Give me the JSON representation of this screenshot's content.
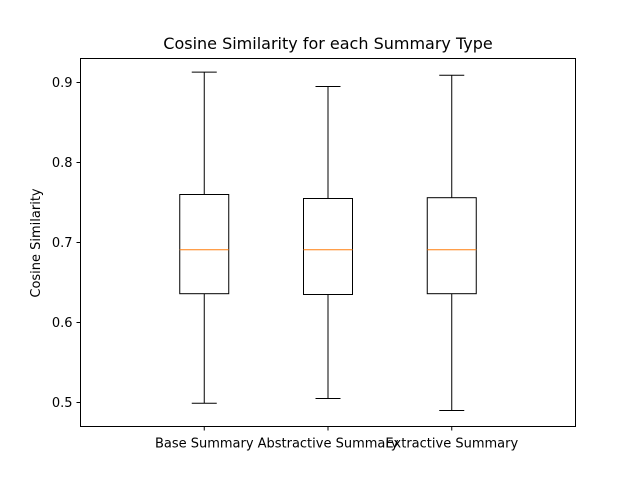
{
  "chart_data": {
    "type": "boxplot",
    "title": "Cosine Similarity for each Summary Type",
    "xlabel": "",
    "ylabel": "Cosine Similarity",
    "ylim": [
      0.47,
      0.93
    ],
    "yticks": [
      0.5,
      0.6,
      0.7,
      0.8,
      0.9
    ],
    "ytick_labels": [
      "0.5",
      "0.6",
      "0.7",
      "0.8",
      "0.9"
    ],
    "grid": false,
    "categories": [
      "Base Summary",
      "Abstractive Summary",
      "Extractive Summary"
    ],
    "boxes": [
      {
        "label": "Base Summary",
        "whisker_low": 0.499,
        "q1": 0.636,
        "median": 0.691,
        "q3": 0.76,
        "whisker_high": 0.913
      },
      {
        "label": "Abstractive Summary",
        "whisker_low": 0.505,
        "q1": 0.635,
        "median": 0.691,
        "q3": 0.755,
        "whisker_high": 0.895
      },
      {
        "label": "Extractive Summary",
        "whisker_low": 0.49,
        "q1": 0.636,
        "median": 0.691,
        "q3": 0.756,
        "whisker_high": 0.909
      }
    ],
    "colors": {
      "box": "#000000",
      "median": "#ff7f0e"
    }
  }
}
